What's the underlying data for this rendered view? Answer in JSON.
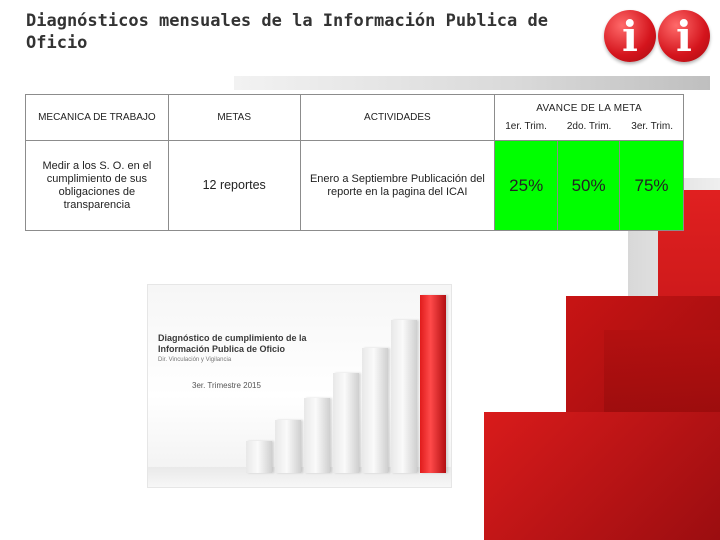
{
  "slide": {
    "title": "Diagnósticos mensuales de la Información Publica de Oficio"
  },
  "logo": {
    "glyph_1": "i",
    "glyph_2": "i",
    "color": "#d4141c"
  },
  "table": {
    "headers": {
      "mecanica": "MECANICA DE TRABAJO",
      "metas": "METAS",
      "actividades": "ACTIVIDADES",
      "avance": "AVANCE DE LA META",
      "trim_1": "1er. Trim.",
      "trim_2": "2do. Trim.",
      "trim_3": "3er. Trim."
    },
    "row": {
      "mecanica": "Medir a los S. O. en el cumplimiento de sus obligaciones de transparencia",
      "metas": "12 reportes",
      "actividades": "Enero a Septiembre Publicación del reporte en la pagina del ICAI",
      "avance_1": "25%",
      "avance_2": "50%",
      "avance_3": "75%"
    },
    "progress_color": "#00ff00"
  },
  "cover_image": {
    "title": "Diagnóstico de cumplimiento de la Información Publica de Oficio",
    "subtitle": "Dir. Vinculación y Vigilancia",
    "date": "3er. Trimestre 2015",
    "bars": [
      {
        "level": 0.18,
        "color": "#ececec"
      },
      {
        "level": 0.3,
        "color": "#ececec"
      },
      {
        "level": 0.42,
        "color": "#e4e4e4"
      },
      {
        "level": 0.56,
        "color": "#d9d9d9"
      },
      {
        "level": 0.7,
        "color": "#d0d0d0"
      },
      {
        "level": 0.86,
        "color": "#c8c8c8"
      },
      {
        "level": 1.0,
        "color": "#e01c1c"
      }
    ]
  }
}
